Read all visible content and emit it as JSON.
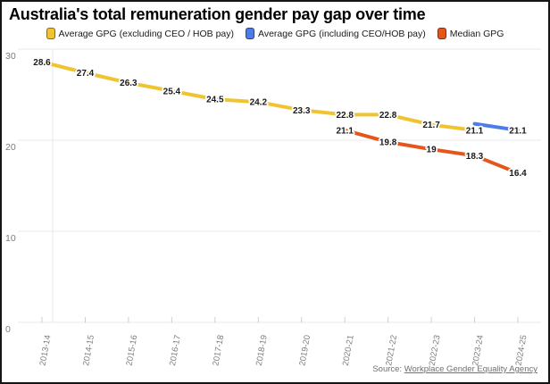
{
  "window": {
    "title": "Australia's total remuneration gender pay gap over time"
  },
  "source": {
    "prefix": "Source:",
    "link_text": "Workplace Gender Equality Agency"
  },
  "chart_data": {
    "type": "line",
    "title": "Australia's total remuneration gender pay gap over time",
    "categories": [
      "2013-14",
      "2014-15",
      "2015-16",
      "2016-17",
      "2017-18",
      "2018-19",
      "2019-20",
      "2020-21",
      "2021-22",
      "2022-23",
      "2023-24",
      "2024-25"
    ],
    "ylim": [
      0,
      30
    ],
    "yticks": [
      0,
      10,
      20,
      30
    ],
    "grid": "horizontal",
    "legend_position": "top",
    "series": [
      {
        "name": "Average GPG (excluding CEO / HOB pay)",
        "color": "#F0C430",
        "start_index": 0,
        "values": [
          28.6,
          27.4,
          26.3,
          25.4,
          24.5,
          24.2,
          23.3,
          22.8,
          22.8,
          21.7,
          21.1
        ],
        "labels": [
          "28.6",
          "27.4",
          "26.3",
          "25.4",
          "24.5",
          "24.2",
          "23.3",
          "22.8",
          "22.8",
          "21.7",
          "21.1"
        ]
      },
      {
        "name": "Average GPG (including CEO/HOB pay)",
        "color": "#4D7CE8",
        "start_index": 10,
        "values": [
          21.8,
          21.1
        ],
        "labels": [
          null,
          "21.1"
        ]
      },
      {
        "name": "Median GPG",
        "color": "#E4561B",
        "start_index": 7,
        "values": [
          21.1,
          19.8,
          19,
          18.3,
          16.4
        ],
        "labels": [
          "21.1",
          "19.8",
          "19",
          "18.3",
          "16.4"
        ]
      }
    ],
    "axis_text_color": "#7d7d7d",
    "gridline_color": "#e9e9e9",
    "point_label_color": "#1a1a1a"
  }
}
